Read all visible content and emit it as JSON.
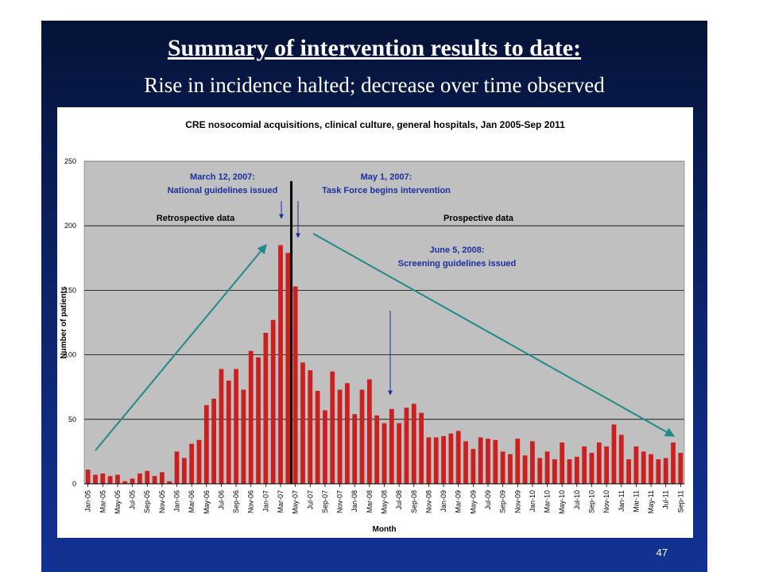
{
  "slide": {
    "title": "Summary of  intervention results to date:",
    "subtitle": "Rise in incidence halted; decrease over time observed",
    "page_number": "47"
  },
  "chart_data": {
    "type": "bar",
    "title": "CRE nosocomial acquisitions, clinical culture, general hospitals, Jan 2005-Sep 2011",
    "xlabel": "Month",
    "ylabel": "Number of patients",
    "ylim": [
      0,
      250
    ],
    "yticks": [
      0,
      50,
      100,
      150,
      200,
      250
    ],
    "grid": true,
    "bar_color": "#cc1f1f",
    "plot_bg": "#c0c0c0",
    "start": "2005-01",
    "xtick_labels": [
      "Jan-05",
      "Mar-05",
      "May-05",
      "Jul-05",
      "Sep-05",
      "Nov-05",
      "Jan-06",
      "Mar-06",
      "May-06",
      "Jul-06",
      "Sep-06",
      "Nov-06",
      "Jan-07",
      "Mar-07",
      "May-07",
      "Jul-07",
      "Sep-07",
      "Nov-07",
      "Jan-08",
      "Mar-08",
      "May-08",
      "Jul-08",
      "Sep-08",
      "Nov-08",
      "Jan-09",
      "Mar-09",
      "May-09",
      "Jul-09",
      "Sep-09",
      "Nov-09",
      "Jan-10",
      "Mar-10",
      "May-10",
      "Jul-10",
      "Sep-10",
      "Nov-10",
      "Jan-11",
      "Mar-11",
      "May-11",
      "Jul-11",
      "Sep-11"
    ],
    "values": [
      11,
      7,
      8,
      6,
      7,
      2,
      4,
      8,
      10,
      6,
      9,
      2,
      25,
      20,
      31,
      34,
      61,
      66,
      89,
      80,
      89,
      73,
      103,
      98,
      117,
      127,
      185,
      179,
      153,
      94,
      88,
      72,
      57,
      87,
      73,
      78,
      54,
      73,
      81,
      53,
      47,
      58,
      47,
      59,
      62,
      55,
      36,
      36,
      37,
      39,
      41,
      33,
      27,
      36,
      35,
      34,
      25,
      23,
      35,
      22,
      33,
      20,
      25,
      19,
      32,
      19,
      21,
      29,
      24,
      32,
      29,
      46,
      38,
      19,
      29,
      25,
      23,
      19,
      20,
      32,
      24
    ],
    "annotations": {
      "left_region": "Retrospective data",
      "right_region": "Prospective data",
      "event1": {
        "label_line1": "March 12, 2007:",
        "label_line2": "National guidelines issued"
      },
      "event2": {
        "label_line1": "May 1, 2007:",
        "label_line2": "Task Force begins intervention"
      },
      "event3": {
        "label_line1": "June 5, 2008:",
        "label_line2": "Screening guidelines issued"
      }
    },
    "colors": {
      "annotation": "#1a2fa0",
      "trend": "#1f8a8a",
      "divider": "#000000"
    }
  }
}
